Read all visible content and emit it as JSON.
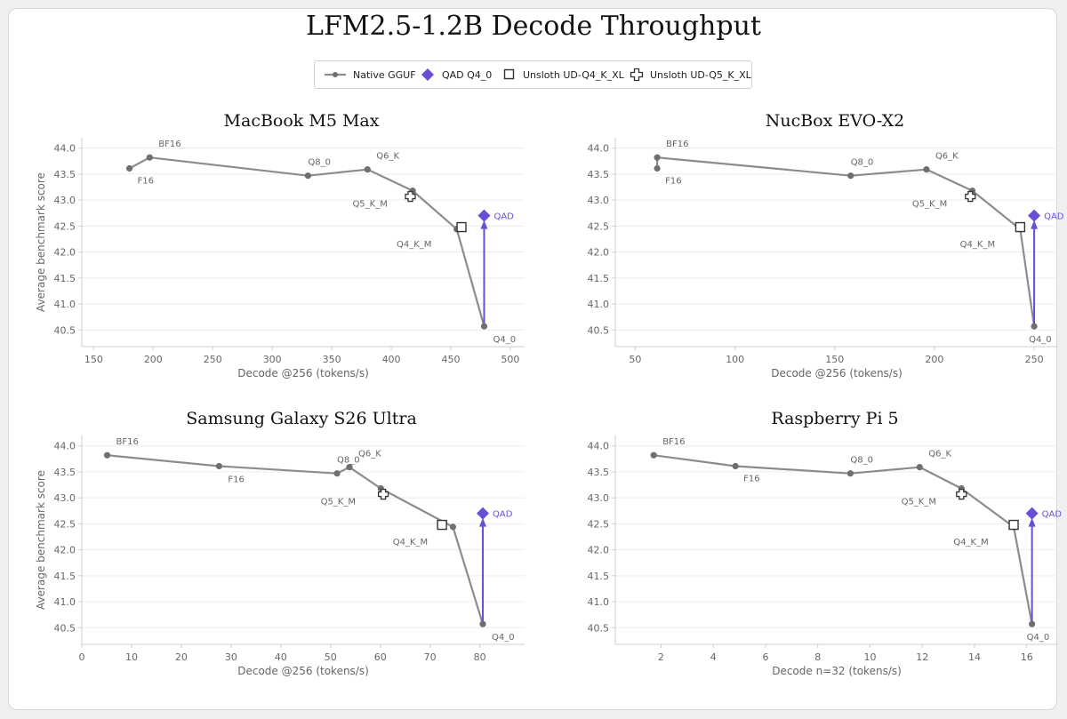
{
  "title": "LFM2.5-1.2B Decode Throughput",
  "legend": {
    "native": "Native GGUF",
    "qad": "QAD Q4_0",
    "ud_q4": "Unsloth UD-Q4_K_XL",
    "ud_q5": "Unsloth UD-Q5_K_XL"
  },
  "colors": {
    "native": "#8c8c8c",
    "native_marker": "#6f6f6f",
    "qad": "#6a4fd6",
    "grid": "#ececec",
    "axis": "#cfcfcf",
    "tick_text": "#666666"
  },
  "chart_data": [
    {
      "type": "line",
      "title": "MacBook M5 Max",
      "xlabel": "Decode @256 (tokens/s)",
      "ylabel": "Average benchmark score",
      "xlim": [
        140,
        512
      ],
      "ylim": [
        40.18,
        44.2
      ],
      "xticks": [
        150,
        200,
        250,
        300,
        350,
        400,
        450,
        500
      ],
      "yticks": [
        40.5,
        41.0,
        41.5,
        42.0,
        42.5,
        43.0,
        43.5,
        44.0
      ],
      "native": [
        {
          "label": "F16",
          "x": 180,
          "y": 43.61
        },
        {
          "label": "BF16",
          "x": 197,
          "y": 43.82
        },
        {
          "label": "Q8_0",
          "x": 330,
          "y": 43.47
        },
        {
          "label": "Q6_K",
          "x": 380,
          "y": 43.59
        },
        {
          "label": "Q5_K_M",
          "x": 418,
          "y": 43.18
        },
        {
          "label": "Q4_K_M",
          "x": 455,
          "y": 42.44
        },
        {
          "label": "Q4_0",
          "x": 478,
          "y": 40.57
        }
      ],
      "qad": {
        "label": "QAD",
        "x": 478,
        "y": 42.7
      },
      "ud_q4": {
        "x": 459,
        "y": 42.48
      },
      "ud_q5": {
        "x": 416,
        "y": 43.07
      }
    },
    {
      "type": "line",
      "title": "NucBox EVO-X2",
      "xlabel": "Decode @256 (tokens/s)",
      "ylabel": "",
      "xlim": [
        40,
        262
      ],
      "ylim": [
        40.18,
        44.2
      ],
      "xticks": [
        50,
        100,
        150,
        200,
        250
      ],
      "yticks": [
        40.5,
        41.0,
        41.5,
        42.0,
        42.5,
        43.0,
        43.5,
        44.0
      ],
      "native": [
        {
          "label": "F16",
          "x": 61,
          "y": 43.61
        },
        {
          "label": "BF16",
          "x": 61,
          "y": 43.82
        },
        {
          "label": "Q8_0",
          "x": 158,
          "y": 43.47
        },
        {
          "label": "Q6_K",
          "x": 196,
          "y": 43.59
        },
        {
          "label": "Q5_K_M",
          "x": 219,
          "y": 43.18
        },
        {
          "label": "Q4_K_M",
          "x": 243,
          "y": 42.44
        },
        {
          "label": "Q4_0",
          "x": 250,
          "y": 40.57
        }
      ],
      "qad": {
        "label": "QAD",
        "x": 250,
        "y": 42.7
      },
      "ud_q4": {
        "x": 243,
        "y": 42.48
      },
      "ud_q5": {
        "x": 218,
        "y": 43.07
      }
    },
    {
      "type": "line",
      "title": "Samsung Galaxy S26 Ultra",
      "xlabel": "Decode @256 (tokens/s)",
      "ylabel": "Average benchmark score",
      "xlim": [
        0,
        89
      ],
      "ylim": [
        40.18,
        44.2
      ],
      "xticks": [
        0,
        10,
        20,
        30,
        40,
        50,
        60,
        70,
        80
      ],
      "yticks": [
        40.5,
        41.0,
        41.5,
        42.0,
        42.5,
        43.0,
        43.5,
        44.0
      ],
      "native": [
        {
          "label": "BF16",
          "x": 5.1,
          "y": 43.82
        },
        {
          "label": "F16",
          "x": 27.6,
          "y": 43.61
        },
        {
          "label": "Q8_0",
          "x": 51.3,
          "y": 43.47
        },
        {
          "label": "Q6_K",
          "x": 53.8,
          "y": 43.59
        },
        {
          "label": "Q5_K_M",
          "x": 60.1,
          "y": 43.18
        },
        {
          "label": "Q4_K_M",
          "x": 74.6,
          "y": 42.44
        },
        {
          "label": "Q4_0",
          "x": 80.6,
          "y": 40.57
        }
      ],
      "qad": {
        "label": "QAD",
        "x": 80.6,
        "y": 42.7
      },
      "ud_q4": {
        "x": 72.4,
        "y": 42.48
      },
      "ud_q5": {
        "x": 60.6,
        "y": 43.07
      }
    },
    {
      "type": "line",
      "title": "Raspberry Pi 5",
      "xlabel": "Decode n=32 (tokens/s)",
      "ylabel": "",
      "xlim": [
        0.25,
        17.2
      ],
      "ylim": [
        40.18,
        44.2
      ],
      "xticks": [
        2,
        4,
        6,
        8,
        10,
        12,
        14,
        16
      ],
      "yticks": [
        40.5,
        41.0,
        41.5,
        42.0,
        42.5,
        43.0,
        43.5,
        44.0
      ],
      "native": [
        {
          "label": "BF16",
          "x": 1.72,
          "y": 43.82
        },
        {
          "label": "F16",
          "x": 4.85,
          "y": 43.61
        },
        {
          "label": "Q8_0",
          "x": 9.25,
          "y": 43.47
        },
        {
          "label": "Q6_K",
          "x": 11.9,
          "y": 43.59
        },
        {
          "label": "Q5_K_M",
          "x": 13.5,
          "y": 43.18
        },
        {
          "label": "Q4_K_M",
          "x": 15.5,
          "y": 42.44
        },
        {
          "label": "Q4_0",
          "x": 16.2,
          "y": 40.57
        }
      ],
      "qad": {
        "label": "QAD",
        "x": 16.2,
        "y": 42.7
      },
      "ud_q4": {
        "x": 15.5,
        "y": 42.48
      },
      "ud_q5": {
        "x": 13.5,
        "y": 43.07
      }
    }
  ]
}
